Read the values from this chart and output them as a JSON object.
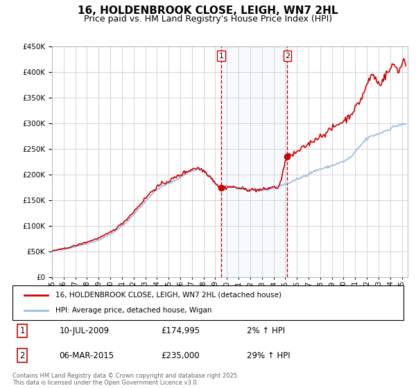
{
  "title": "16, HOLDENBROOK CLOSE, LEIGH, WN7 2HL",
  "subtitle": "Price paid vs. HM Land Registry's House Price Index (HPI)",
  "title_fontsize": 11,
  "subtitle_fontsize": 9,
  "ylim": [
    0,
    450000
  ],
  "yticks": [
    0,
    50000,
    100000,
    150000,
    200000,
    250000,
    300000,
    350000,
    400000,
    450000
  ],
  "xlim_start": 1995.0,
  "xlim_end": 2025.5,
  "background_color": "#ffffff",
  "plot_bg_color": "#ffffff",
  "grid_color": "#cccccc",
  "red_line_color": "#cc0000",
  "blue_line_color": "#99bbdd",
  "vline_color": "#cc0000",
  "highlight_fill": "#ddeeff",
  "legend_label_red": "16, HOLDENBROOK CLOSE, LEIGH, WN7 2HL (detached house)",
  "legend_label_blue": "HPI: Average price, detached house, Wigan",
  "footnote": "Contains HM Land Registry data © Crown copyright and database right 2025.\nThis data is licensed under the Open Government Licence v3.0.",
  "marker1_x": 2009.52,
  "marker1_label": "1",
  "marker1_date": "10-JUL-2009",
  "marker1_price": "£174,995",
  "marker1_hpi": "2% ↑ HPI",
  "marker2_x": 2015.18,
  "marker2_label": "2",
  "marker2_date": "06-MAR-2015",
  "marker2_price": "£235,000",
  "marker2_hpi": "29% ↑ HPI"
}
